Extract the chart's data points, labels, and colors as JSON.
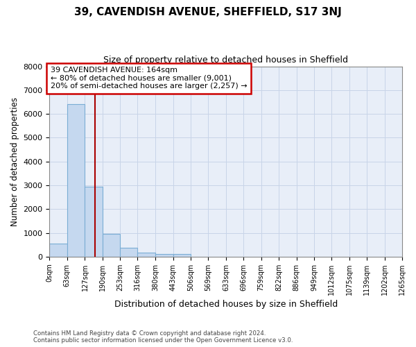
{
  "title": "39, CAVENDISH AVENUE, SHEFFIELD, S17 3NJ",
  "subtitle": "Size of property relative to detached houses in Sheffield",
  "xlabel": "Distribution of detached houses by size in Sheffield",
  "ylabel": "Number of detached properties",
  "bin_edges": [
    0,
    63,
    127,
    190,
    253,
    316,
    380,
    443,
    506,
    569,
    633,
    696,
    759,
    822,
    886,
    949,
    1012,
    1075,
    1139,
    1202,
    1265
  ],
  "bin_labels": [
    "0sqm",
    "63sqm",
    "127sqm",
    "190sqm",
    "253sqm",
    "316sqm",
    "380sqm",
    "443sqm",
    "506sqm",
    "569sqm",
    "633sqm",
    "696sqm",
    "759sqm",
    "822sqm",
    "886sqm",
    "949sqm",
    "1012sqm",
    "1075sqm",
    "1139sqm",
    "1202sqm",
    "1265sqm"
  ],
  "bar_heights": [
    550,
    6400,
    2950,
    950,
    380,
    170,
    100,
    100,
    0,
    0,
    0,
    0,
    0,
    0,
    0,
    0,
    0,
    0,
    0,
    0
  ],
  "bar_color": "#c5d8ef",
  "bar_edge_color": "#7aadd4",
  "vline_x": 164,
  "vline_color": "#aa0000",
  "ylim": [
    0,
    8000
  ],
  "yticks": [
    0,
    1000,
    2000,
    3000,
    4000,
    5000,
    6000,
    7000,
    8000
  ],
  "annotation_title": "39 CAVENDISH AVENUE: 164sqm",
  "annotation_line2": "← 80% of detached houses are smaller (9,001)",
  "annotation_line3": "20% of semi-detached houses are larger (2,257) →",
  "annotation_box_color": "#cc0000",
  "grid_color": "#c8d4e8",
  "background_color": "#e8eef8",
  "footer_line1": "Contains HM Land Registry data © Crown copyright and database right 2024.",
  "footer_line2": "Contains public sector information licensed under the Open Government Licence v3.0."
}
